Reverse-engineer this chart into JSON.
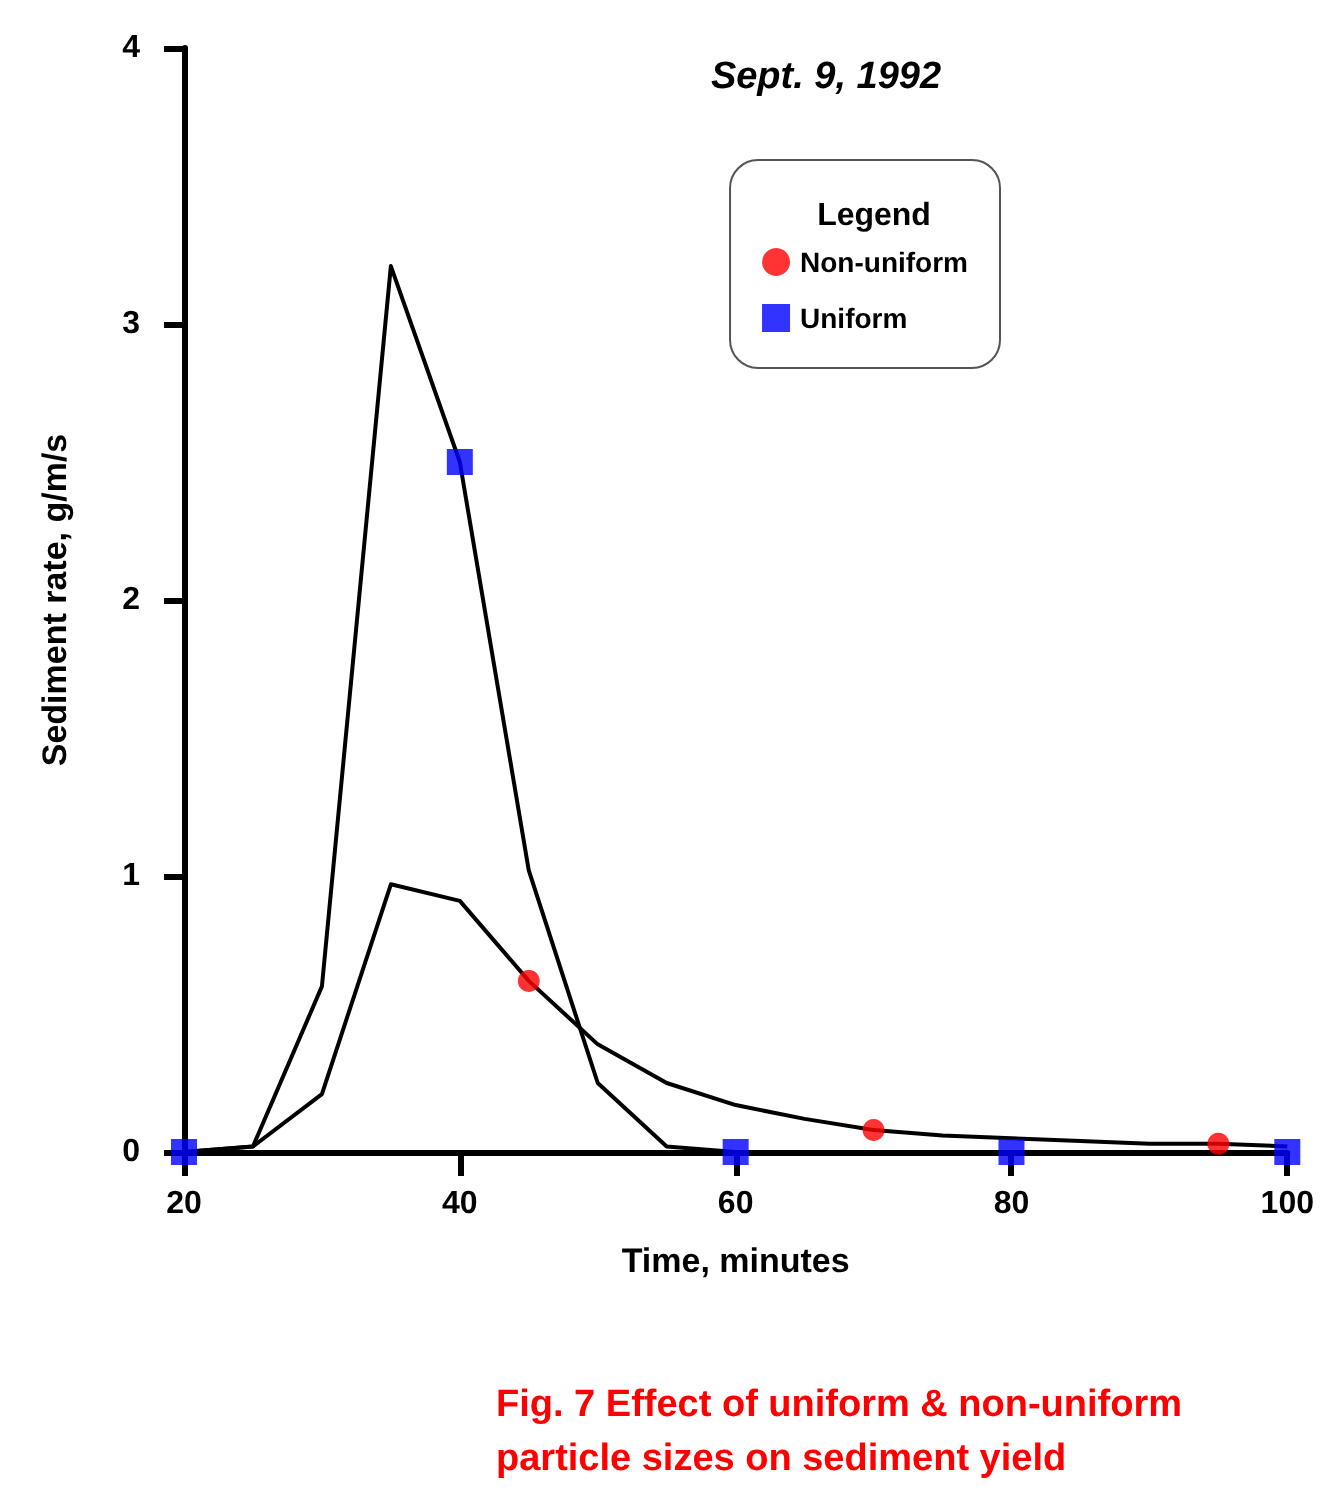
{
  "chart_data": {
    "type": "line",
    "title": "Sept. 9, 1992",
    "xlabel": "Time, minutes",
    "ylabel": "Sediment rate, g/m/s",
    "legend_title": "Legend",
    "annotations": [
      "Fig. 7 Effect of uniform & non-uniform particle sizes on sediment yield"
    ],
    "x": [
      20,
      25,
      30,
      35,
      40,
      45,
      50,
      55,
      60,
      65,
      70,
      75,
      80,
      85,
      90,
      95,
      100
    ],
    "series": [
      {
        "color": "#000000",
        "values": [
          0,
          0.02,
          0.21,
          0.97,
          0.91,
          0.62,
          0.39,
          0.25,
          0.17,
          0.12,
          0.08,
          0.06,
          0.05,
          0.04,
          0.03,
          0.03,
          0.02
        ]
      },
      {
        "color": "#000000",
        "values": [
          0,
          0.02,
          0.6,
          3.21,
          2.5,
          1.02,
          0.25,
          0.02,
          0,
          0,
          0,
          0,
          0,
          0,
          0,
          0,
          0
        ]
      },
      {
        "type": "scatter",
        "name": "Non-uniform",
        "color": "#ff0000",
        "marker": "circle",
        "x": [
          45,
          70,
          95
        ],
        "values": [
          0.62,
          0.08,
          0.03
        ]
      },
      {
        "type": "scatter",
        "name": "Uniform",
        "color": "#0000ff",
        "marker": "square",
        "x": [
          20,
          40,
          60,
          80,
          100
        ],
        "values": [
          0,
          2.5,
          0,
          0,
          0
        ]
      }
    ],
    "xlim": [
      20,
      100
    ],
    "xticks": [
      20,
      40,
      60,
      80,
      100
    ],
    "ylim": [
      0,
      4
    ],
    "yticks": [
      0,
      1,
      2,
      3,
      4
    ],
    "grid": false,
    "legend": "top right",
    "line_style": "solid"
  }
}
